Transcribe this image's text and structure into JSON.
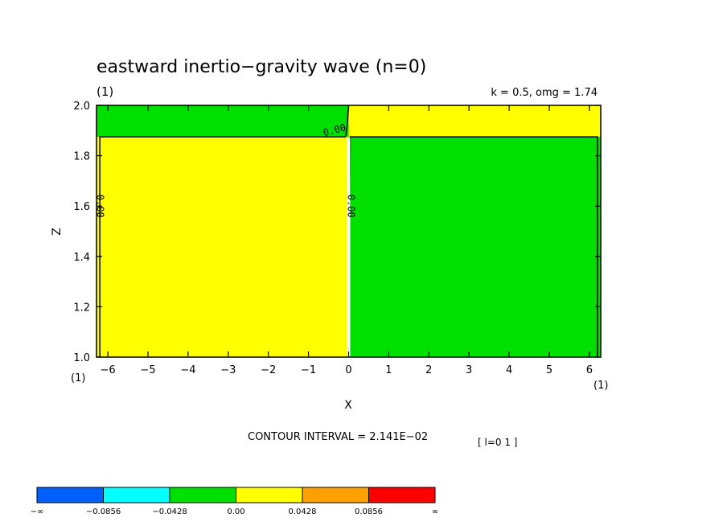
{
  "chart_data": {
    "type": "heatmap",
    "title": "eastward inertio−gravity wave (n=0)",
    "panel_label": "(1)",
    "params": "k = 0.5, omg = 1.74",
    "xlabel": "X",
    "ylabel": "Z",
    "xlim": [
      -6.283,
      6.283
    ],
    "ylim": [
      1.0,
      2.0
    ],
    "x_ticks": [
      "−6",
      "−5",
      "−4",
      "−3",
      "−2",
      "−1",
      "0",
      "1",
      "2",
      "3",
      "4",
      "5",
      "6"
    ],
    "y_ticks": [
      "1.0",
      "1.2",
      "1.4",
      "1.6",
      "1.8",
      "2.0"
    ],
    "x_unit_left": "(1)",
    "x_unit_right": "(1)",
    "regions": [
      {
        "x": [
          -6.283,
          0.0
        ],
        "y": [
          1.0,
          1.875
        ],
        "level": "0.00 - 0.0428",
        "color": "#ffff00"
      },
      {
        "x": [
          -6.283,
          0.0
        ],
        "y": [
          1.875,
          2.0
        ],
        "level": "-0.0428 - 0.00",
        "color": "#00e000"
      },
      {
        "x": [
          0.0,
          6.283
        ],
        "y": [
          1.0,
          1.875
        ],
        "level": "-0.0428 - 0.00",
        "color": "#00e000"
      },
      {
        "x": [
          0.0,
          6.283
        ],
        "y": [
          1.875,
          2.0
        ],
        "level": "0.00 - 0.0428",
        "color": "#ffff00"
      }
    ],
    "contour_labels": [
      {
        "text": "0.00",
        "x": -6.2,
        "y": 1.6
      },
      {
        "text": "0.00",
        "x": 0.05,
        "y": 1.6
      },
      {
        "text": "0.00",
        "x": -0.35,
        "y": 1.9
      }
    ],
    "contour_interval_text": "CONTOUR INTERVAL = 2.141E−02",
    "index_text": "[ l=0 1 ]",
    "colorbar": {
      "colors": [
        "#0060ff",
        "#00ffff",
        "#00e000",
        "#ffff00",
        "#ffa000",
        "#ff0000"
      ],
      "labels": [
        "−∞",
        "−0.0856",
        "−0.0428",
        "0.00",
        "0.0428",
        "0.0856",
        "∞"
      ]
    }
  }
}
